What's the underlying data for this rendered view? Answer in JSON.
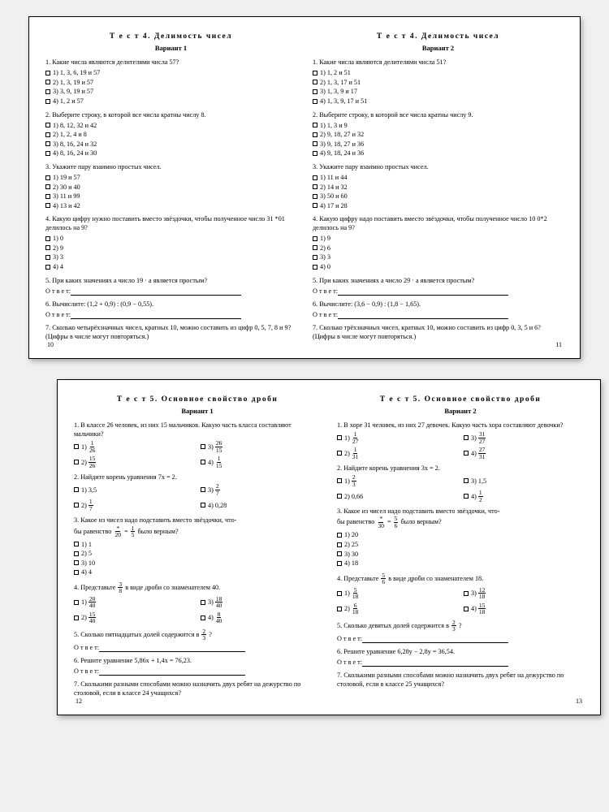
{
  "sheet1": {
    "left": {
      "title": "Т е с т  4. Делимость чисел",
      "variant": "Вариант 1",
      "q1": "1. Какие числа являются делителями числа 57?",
      "q1o": [
        "1) 1, 3, 6, 19 и 57",
        "2) 1, 3, 19 и 57",
        "3) 3, 9, 19 и 57",
        "4) 1, 2 и 57"
      ],
      "q2": "2. Выберите строку, в которой все числа кратны числу 8.",
      "q2o": [
        "1) 8, 12, 32 и 42",
        "2) 1, 2, 4 и 8",
        "3) 8, 16, 24 и 32",
        "4) 8, 16, 24 и 30"
      ],
      "q3": "3. Укажите пару взаимно простых чисел.",
      "q3o": [
        "1) 19 и 57",
        "2) 30 и 40",
        "3) 11 и 99",
        "4) 13 и 42"
      ],
      "q4": "4. Какую цифру нужно поставить вместо звёздочки, чтобы полученное число 31 *01 делилось на 9?",
      "q4o": [
        "1) 0",
        "2) 9",
        "3) 3",
        "4) 4"
      ],
      "q5": "5. При каких значениях a число 19 · a является простым?",
      "q6": "6. Вычислите: (1,2 + 0,9) : (0,9 − 0,55).",
      "q7": "7. Сколько четырёхзначных чисел, кратных 10, можно составить из цифр 0, 5, 7, 8 и 9? (Цифры в числе могут повторяться.)",
      "ans": "О т в е т:",
      "page": "10"
    },
    "right": {
      "title": "Т е с т  4. Делимость чисел",
      "variant": "Вариант 2",
      "q1": "1. Какие числа являются делителями числа 51?",
      "q1o": [
        "1) 1, 2 и 51",
        "2) 1, 3, 17 и 51",
        "3) 1, 3, 9 и 17",
        "4) 1, 3, 9, 17 и 51"
      ],
      "q2": "2. Выберите строку, в которой все числа кратны числу 9.",
      "q2o": [
        "1) 1, 3 и 9",
        "2) 9, 18, 27 и 32",
        "3) 9, 18, 27 и 36",
        "4) 9, 18, 24 и 36"
      ],
      "q3": "3. Укажите пару взаимно простых чисел.",
      "q3o": [
        "1) 11 и 44",
        "2) 14 и 32",
        "3) 50 и 60",
        "4) 17 и 28"
      ],
      "q4": "4. Какую цифру надо поставить вместо звёздочки, чтобы полученное число 10 0*2 делилось на 9?",
      "q4o": [
        "1) 9",
        "2) 6",
        "3) 3",
        "4) 0"
      ],
      "q5": "5. При каких значениях a число 29 · a является простым?",
      "q6": "6. Вычислите: (3,6 − 0,9) : (1,8 − 1,65).",
      "q7": "7. Сколько трёхзначных чисел, кратных 10, можно составить из цифр 0, 3, 5 и 6? (Цифры в числе могут повторяться.)",
      "ans": "О т в е т:",
      "page": "11"
    }
  },
  "sheet2": {
    "left": {
      "title": "Т е с т  5. Основное свойство дроби",
      "variant": "Вариант 1",
      "q1": "1. В классе 26 человек, из них 15 мальчиков. Какую часть класса составляют мальчики?",
      "q1f": [
        [
          "1",
          "26"
        ],
        [
          "26",
          "15"
        ],
        [
          "15",
          "26"
        ],
        [
          "1",
          "15"
        ]
      ],
      "q2": "2. Найдите корень уравнения 7x = 2.",
      "q2o": [
        "1) 3,5",
        "3)",
        "2)",
        "4) 0,28"
      ],
      "q2f": [
        [
          "2",
          "7"
        ],
        [
          "1",
          "7"
        ]
      ],
      "q3a": "3. Какое из чисел надо подставить вместо звёздочки, что-",
      "q3b": "бы равенство",
      "q3c": "было верным?",
      "q3f1": [
        "*",
        "20"
      ],
      "q3f2": [
        "1",
        "5"
      ],
      "q3o": [
        "1) 1",
        "2) 5",
        "3) 10",
        "4) 4"
      ],
      "q4a": "4. Представьте",
      "q4b": "в виде дроби со знаменателем 40.",
      "q4f": [
        "3",
        "8"
      ],
      "q4of": [
        [
          "20",
          "40"
        ],
        [
          "18",
          "40"
        ],
        [
          "15",
          "40"
        ],
        [
          "8",
          "40"
        ]
      ],
      "q5a": "5. Сколько пятнадцатых долей содержится в",
      "q5f": [
        "2",
        "3"
      ],
      "q6": "6. Решите уравнение 5,86x + 1,4x = 76,23.",
      "q7": "7. Сколькими разными способами можно назначить двух ребят на дежурство по столовой, если в классе 24 учащихся?",
      "ans": "О т в е т:",
      "page": "12"
    },
    "right": {
      "title": "Т е с т  5. Основное свойство дроби",
      "variant": "Вариант 2",
      "q1": "1. В хоре 31 человек, из них 27 девочек. Какую часть хора составляют девочки?",
      "q1f": [
        [
          "1",
          "27"
        ],
        [
          "31",
          "27"
        ],
        [
          "1",
          "31"
        ],
        [
          "27",
          "31"
        ]
      ],
      "q2": "2. Найдите корень уравнения 3x = 2.",
      "q2f": [
        [
          "2",
          "3"
        ],
        [
          "1",
          "2"
        ]
      ],
      "q3a": "3. Какое из чисел надо подставить вместо звёздочки, что-",
      "q3b": "бы равенство",
      "q3c": "было верным?",
      "q3f1": [
        "*",
        "30"
      ],
      "q3f2": [
        "5",
        "6"
      ],
      "q3o": [
        "1) 20",
        "2) 25",
        "3) 30",
        "4) 18"
      ],
      "q4a": "4. Представьте",
      "q4b": "в виде дроби со знаменателем 18.",
      "q4f": [
        "5",
        "6"
      ],
      "q4of": [
        [
          "5",
          "18"
        ],
        [
          "12",
          "18"
        ],
        [
          "6",
          "18"
        ],
        [
          "15",
          "18"
        ]
      ],
      "q5a": "5. Сколько девятых долей содержится в",
      "q5f": [
        "2",
        "3"
      ],
      "q6": "6. Решите уравнение 6,28y − 2,8y = 36,54.",
      "q7": "7. Сколькими разными способами можно назначить двух ребят на дежурство по столовой, если в классе 25 учащихся?",
      "ans": "О т в е т:",
      "page": "13"
    }
  }
}
